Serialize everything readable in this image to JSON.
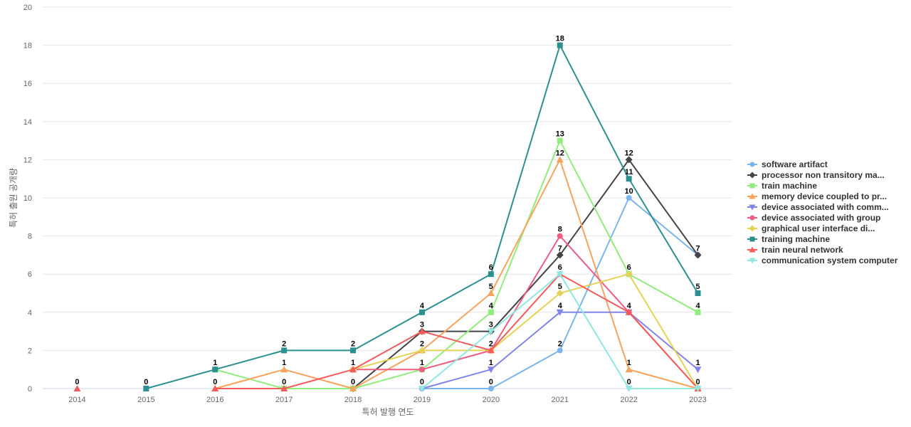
{
  "chart_data": {
    "type": "line",
    "title": "",
    "xlabel": "특허 발행 연도",
    "ylabel": "특허 출원 공개량",
    "x": [
      "2014",
      "2015",
      "2016",
      "2017",
      "2018",
      "2019",
      "2020",
      "2021",
      "2022",
      "2023"
    ],
    "ylim": [
      0,
      20
    ],
    "yticks": [
      0,
      2,
      4,
      6,
      8,
      10,
      12,
      14,
      16,
      18,
      20
    ],
    "grid": true,
    "legend_position": "right",
    "series": [
      {
        "name": "software artifact",
        "color": "#7cb5ec",
        "marker": "circle",
        "values": [
          null,
          null,
          null,
          null,
          null,
          0,
          0,
          2,
          10,
          7
        ]
      },
      {
        "name": "processor non transitory ma...",
        "color": "#434348",
        "marker": "diamond",
        "values": [
          null,
          null,
          null,
          null,
          0,
          3,
          3,
          7,
          12,
          7
        ]
      },
      {
        "name": "train machine",
        "color": "#90ed7d",
        "marker": "square",
        "values": [
          null,
          null,
          1,
          0,
          0,
          1,
          4,
          13,
          6,
          4
        ]
      },
      {
        "name": "memory device coupled to pr...",
        "color": "#f7a35c",
        "marker": "triangle",
        "values": [
          null,
          null,
          0,
          1,
          0,
          2,
          5,
          12,
          1,
          0
        ]
      },
      {
        "name": "device associated with comm...",
        "color": "#8085e9",
        "marker": "triangle-down",
        "values": [
          null,
          null,
          null,
          null,
          null,
          0,
          1,
          4,
          4,
          1
        ]
      },
      {
        "name": "device associated with group",
        "color": "#f15c80",
        "marker": "circle",
        "values": [
          null,
          null,
          null,
          null,
          1,
          1,
          2,
          8,
          4,
          0
        ]
      },
      {
        "name": "graphical user interface di...",
        "color": "#e4d354",
        "marker": "diamond",
        "values": [
          null,
          null,
          null,
          null,
          1,
          2,
          2,
          5,
          6,
          0
        ]
      },
      {
        "name": "training machine",
        "color": "#2b908f",
        "marker": "square",
        "values": [
          null,
          0,
          1,
          2,
          2,
          4,
          6,
          18,
          11,
          5
        ]
      },
      {
        "name": "train neural network",
        "color": "#f45b5b",
        "marker": "triangle",
        "values": [
          0,
          null,
          0,
          0,
          1,
          3,
          2,
          6,
          4,
          0
        ]
      },
      {
        "name": "communication system computer",
        "color": "#91e8e1",
        "marker": "triangle-down",
        "values": [
          null,
          null,
          null,
          null,
          null,
          0,
          3,
          6,
          0,
          0
        ]
      }
    ],
    "data_labels": [
      {
        "x": "2014",
        "text": "0",
        "value": 0
      },
      {
        "x": "2015",
        "text": "0",
        "value": 0
      },
      {
        "x": "2016",
        "text": "1",
        "value": 1
      },
      {
        "x": "2016",
        "text": "0",
        "value": 0
      },
      {
        "x": "2017",
        "text": "2",
        "value": 2
      },
      {
        "x": "2017",
        "text": "1",
        "value": 1
      },
      {
        "x": "2017",
        "text": "0",
        "value": 0
      },
      {
        "x": "2018",
        "text": "2",
        "value": 2
      },
      {
        "x": "2018",
        "text": "1",
        "value": 1
      },
      {
        "x": "2018",
        "text": "0",
        "value": 0
      },
      {
        "x": "2019",
        "text": "4",
        "value": 4
      },
      {
        "x": "2019",
        "text": "3",
        "value": 3
      },
      {
        "x": "2019",
        "text": "2",
        "value": 2
      },
      {
        "x": "2019",
        "text": "1",
        "value": 1
      },
      {
        "x": "2019",
        "text": "0",
        "value": 0
      },
      {
        "x": "2020",
        "text": "6",
        "value": 6
      },
      {
        "x": "2020",
        "text": "5",
        "value": 5
      },
      {
        "x": "2020",
        "text": "4",
        "value": 4
      },
      {
        "x": "2020",
        "text": "3",
        "value": 3
      },
      {
        "x": "2020",
        "text": "2",
        "value": 2
      },
      {
        "x": "2020",
        "text": "1",
        "value": 1
      },
      {
        "x": "2020",
        "text": "0",
        "value": 0
      },
      {
        "x": "2021",
        "text": "18",
        "value": 18
      },
      {
        "x": "2021",
        "text": "13",
        "value": 13
      },
      {
        "x": "2021",
        "text": "12",
        "value": 12
      },
      {
        "x": "2021",
        "text": "8",
        "value": 8
      },
      {
        "x": "2021",
        "text": "7",
        "value": 7
      },
      {
        "x": "2021",
        "text": "6",
        "value": 6
      },
      {
        "x": "2021",
        "text": "5",
        "value": 5
      },
      {
        "x": "2021",
        "text": "4",
        "value": 4
      },
      {
        "x": "2021",
        "text": "2",
        "value": 2
      },
      {
        "x": "2022",
        "text": "12",
        "value": 12
      },
      {
        "x": "2022",
        "text": "11",
        "value": 11
      },
      {
        "x": "2022",
        "text": "10",
        "value": 10
      },
      {
        "x": "2022",
        "text": "6",
        "value": 6
      },
      {
        "x": "2022",
        "text": "4",
        "value": 4
      },
      {
        "x": "2022",
        "text": "1",
        "value": 1
      },
      {
        "x": "2022",
        "text": "0",
        "value": 0
      },
      {
        "x": "2023",
        "text": "7",
        "value": 7
      },
      {
        "x": "2023",
        "text": "5",
        "value": 5
      },
      {
        "x": "2023",
        "text": "4",
        "value": 4
      },
      {
        "x": "2023",
        "text": "1",
        "value": 1
      },
      {
        "x": "2023",
        "text": "0",
        "value": 0
      }
    ]
  }
}
